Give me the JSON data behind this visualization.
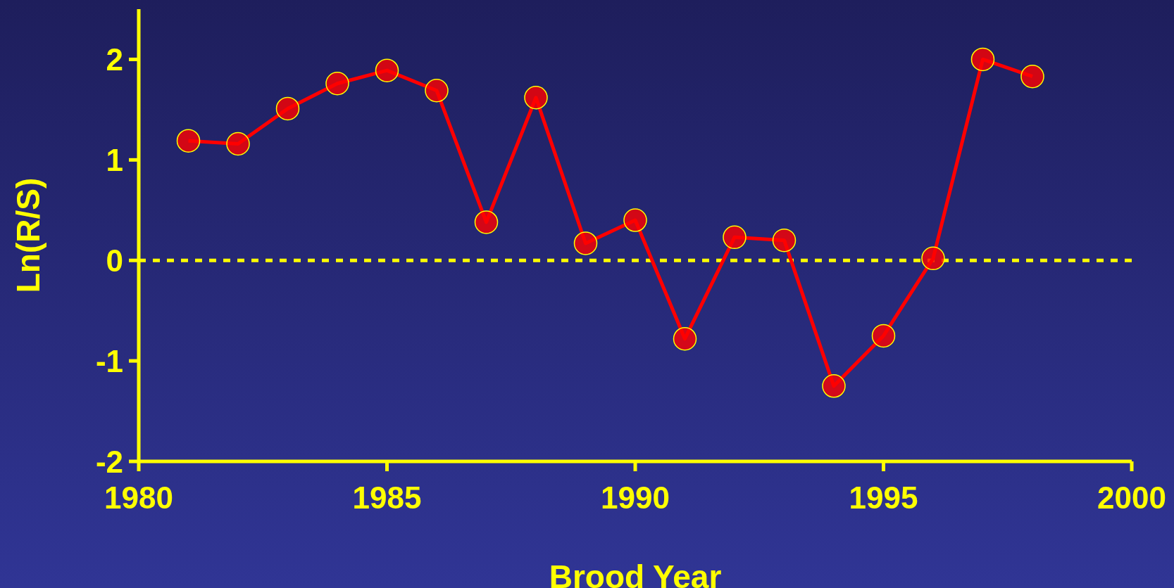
{
  "chart_data": {
    "type": "line",
    "xlabel": "Brood Year",
    "ylabel": "Ln(R/S)",
    "x": [
      1981,
      1982,
      1983,
      1984,
      1985,
      1986,
      1987,
      1988,
      1989,
      1990,
      1991,
      1992,
      1993,
      1994,
      1995,
      1996,
      1997,
      1998
    ],
    "series": [
      {
        "color": "#ff0000",
        "values": [
          1.19,
          1.16,
          1.51,
          1.76,
          1.89,
          1.69,
          0.38,
          1.62,
          0.17,
          0.4,
          -0.78,
          0.23,
          0.2,
          -1.25,
          -0.75,
          0.02,
          2.0,
          1.83
        ]
      }
    ],
    "xlim": [
      1980,
      2000
    ],
    "xticks": [
      1980,
      1985,
      1990,
      1995,
      2000
    ],
    "ylim": [
      -2,
      2.5
    ],
    "yticks": [
      -2,
      -1,
      0,
      1,
      2
    ],
    "ref_lines": [
      {
        "axis": "y",
        "value": 0,
        "color": "#ffff00",
        "line_style": "dashed"
      }
    ],
    "marker": "circle",
    "line_style": "solid",
    "grid": false,
    "legend": false
  }
}
